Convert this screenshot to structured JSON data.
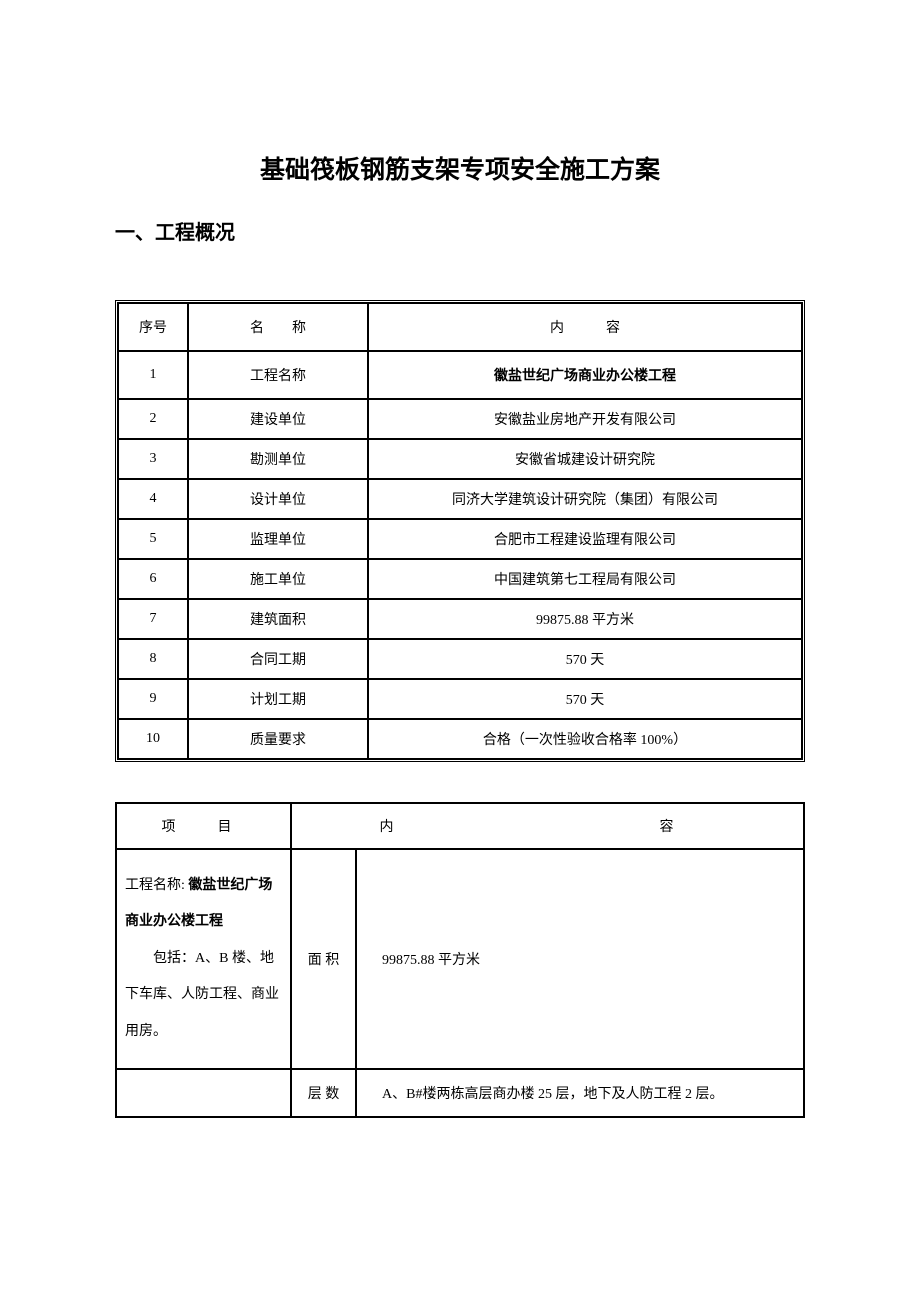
{
  "title": "基础筏板钢筋支架专项安全施工方案",
  "section1_heading": "一、工程概况",
  "table1": {
    "headers": {
      "seq": "序号",
      "name": "名　　称",
      "content": "内　　　容"
    },
    "rows": [
      {
        "seq": "1",
        "name": "工程名称",
        "content": "徽盐世纪广场商业办公楼工程",
        "bold": true,
        "tall": true
      },
      {
        "seq": "2",
        "name": "建设单位",
        "content": "安徽盐业房地产开发有限公司"
      },
      {
        "seq": "3",
        "name": "勘测单位",
        "content": "安徽省城建设计研究院"
      },
      {
        "seq": "4",
        "name": "设计单位",
        "content": "同济大学建筑设计研究院（集团）有限公司"
      },
      {
        "seq": "5",
        "name": "监理单位",
        "content": "合肥市工程建设监理有限公司"
      },
      {
        "seq": "6",
        "name": "施工单位",
        "content": "中国建筑第七工程局有限公司"
      },
      {
        "seq": "7",
        "name": "建筑面积",
        "content": "99875.88 平方米"
      },
      {
        "seq": "8",
        "name": "合同工期",
        "content": "570 天"
      },
      {
        "seq": "9",
        "name": "计划工期",
        "content": "570 天"
      },
      {
        "seq": "10",
        "name": "质量要求",
        "content": "合格（一次性验收合格率 100%）"
      }
    ]
  },
  "table2": {
    "headers": {
      "proj": "项　目",
      "content": "内　　　　容"
    },
    "project_cell": {
      "label": "工程名称:",
      "name": "徽盐世纪广场商业办公楼工程",
      "includes": "包括：A、B 楼、地下车库、人防工程、商业用房。"
    },
    "rows": [
      {
        "attr": "面 积",
        "content": "99875.88 平方米"
      },
      {
        "attr": "层 数",
        "content": "A、B#楼两栋高层商办楼 25 层，地下及人防工程 2 层。"
      }
    ]
  }
}
